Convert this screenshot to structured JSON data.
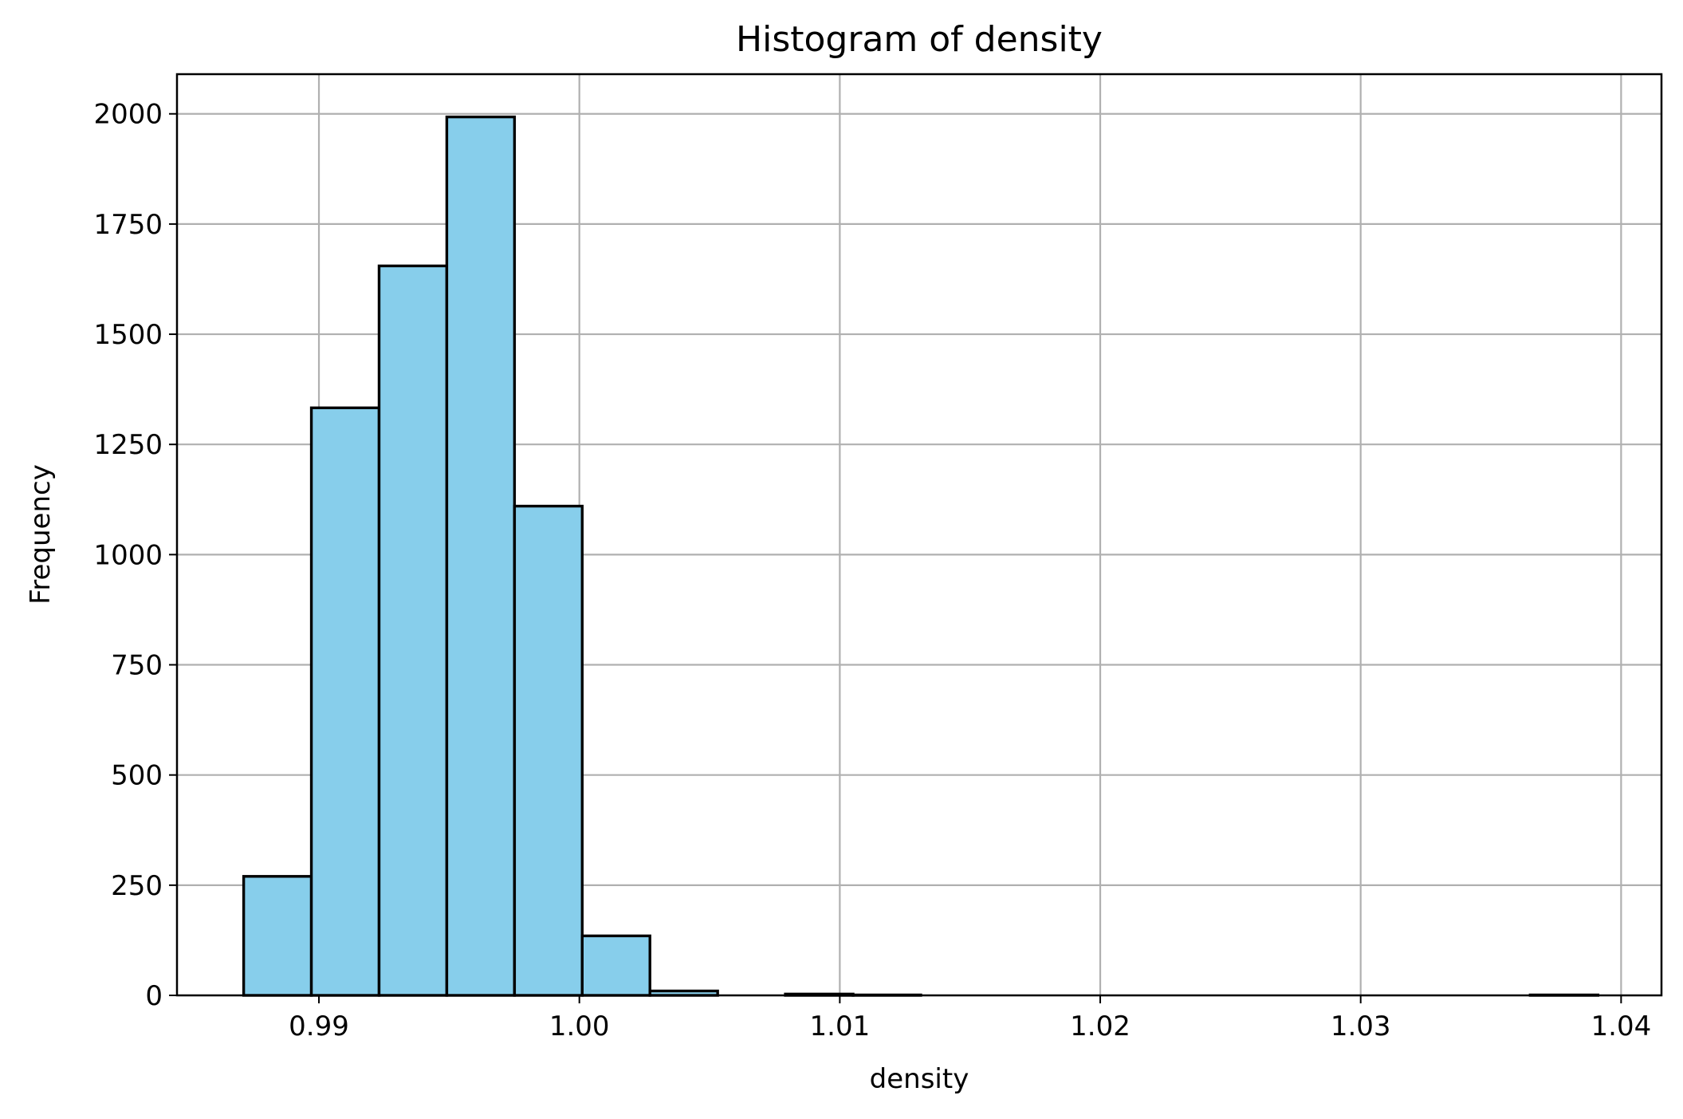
{
  "chart_data": {
    "type": "bar",
    "title": "Histogram of density",
    "xlabel": "density",
    "ylabel": "Frequency",
    "xlim": [
      0.98455,
      1.04155
    ],
    "ylim": [
      0,
      2090
    ],
    "x_ticks": [
      0.99,
      1.0,
      1.01,
      1.02,
      1.03,
      1.04
    ],
    "x_tick_labels": [
      "0.99",
      "1.00",
      "1.01",
      "1.02",
      "1.03",
      "1.04"
    ],
    "y_ticks": [
      0,
      250,
      500,
      750,
      1000,
      1250,
      1500,
      1750,
      2000
    ],
    "y_tick_labels": [
      "0",
      "250",
      "500",
      "750",
      "1000",
      "1250",
      "1500",
      "1750",
      "2000"
    ],
    "grid": true,
    "bar_color": "#87CEEB",
    "edge_color": "#000000",
    "bin_edges": [
      0.98711,
      0.98971,
      0.99231,
      0.99491,
      0.99751,
      1.00011,
      1.00271,
      1.00531,
      1.00791,
      1.01051,
      1.01311,
      1.01571,
      1.01831,
      1.02091,
      1.02351,
      1.02611,
      1.02871,
      1.03131,
      1.03391,
      1.03651,
      1.03911
    ],
    "values": [
      270,
      1333,
      1655,
      1993,
      1110,
      135,
      10,
      0,
      3,
      1,
      0,
      0,
      0,
      0,
      0,
      0,
      0,
      0,
      0,
      1
    ]
  }
}
